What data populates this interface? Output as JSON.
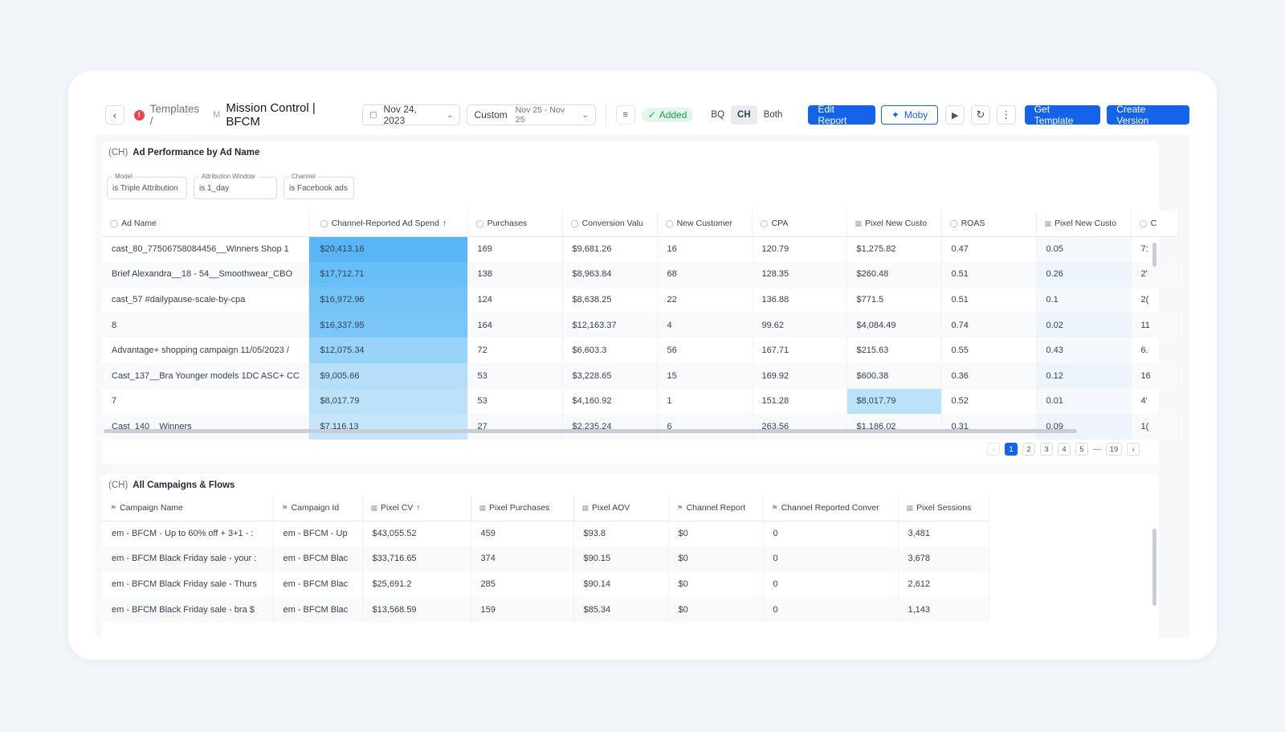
{
  "toolbar": {
    "breadcrumb": "Templates /",
    "badge": "M",
    "title": "Mission Control | BFCM",
    "date": "Nov 24, 2023",
    "range_label": "Custom",
    "range_value": "Nov 25 - Nov 25",
    "added": "Added",
    "seg": [
      "BQ",
      "CH",
      "Both"
    ],
    "edit_report": "Edit Report",
    "moby": "Moby",
    "get_template": "Get Template",
    "create_version": "Create Version"
  },
  "panel1": {
    "prefix": "(CH)",
    "title": "Ad Performance by Ad Name",
    "filters": [
      {
        "label": "Model",
        "value": "is Triple Attribution"
      },
      {
        "label": "Attribution Window",
        "value": "is 1_day"
      },
      {
        "label": "Channel",
        "value": "is Facebook ads"
      }
    ],
    "columns": [
      "Ad Name",
      "Channel-Reported Ad Spend",
      "Purchases",
      "Conversion Valu",
      "New Customer",
      "CPA",
      "Pixel New Custo",
      "ROAS",
      "Pixel New Custo",
      "C"
    ],
    "rows": [
      [
        "cast_80_77506758084456__Winners Shop 1",
        "$20,413.16",
        "169",
        "$9,681.26",
        "16",
        "120.79",
        "$1,275.82",
        "0.47",
        "0.05",
        "7:"
      ],
      [
        "Brief Alexandra__18 - 54__Smoothwear_CBO",
        "$17,712.71",
        "138",
        "$8,963.84",
        "68",
        "128.35",
        "$260.48",
        "0.51",
        "0.26",
        "2'"
      ],
      [
        "cast_57 #dailypause-scale-by-cpa",
        "$16,972.96",
        "124",
        "$8,638.25",
        "22",
        "136.88",
        "$771.5",
        "0.51",
        "0.1",
        "2("
      ],
      [
        "8",
        "$16,337.95",
        "164",
        "$12,163.37",
        "4",
        "99.62",
        "$4,084.49",
        "0.74",
        "0.02",
        "11"
      ],
      [
        "Advantage+ shopping campaign 11/05/2023 /",
        "$12,075.34",
        "72",
        "$6,603.3",
        "56",
        "167.71",
        "$215.63",
        "0.55",
        "0.43",
        "6."
      ],
      [
        "Cast_137__Bra Younger models 1DC ASC+ CC",
        "$9,005.66",
        "53",
        "$3,228.65",
        "15",
        "169.92",
        "$600.38",
        "0.36",
        "0.12",
        "16"
      ],
      [
        "7",
        "$8,017.79",
        "53",
        "$4,160.92",
        "1",
        "151.28",
        "$8,017.79",
        "0.52",
        "0.01",
        "4'"
      ],
      [
        "Cast_140__Winners",
        "$7,116.13",
        "27",
        "$2,235.24",
        "6",
        "263.56",
        "$1,186.02",
        "0.31",
        "0.09",
        "1("
      ]
    ],
    "spend_shades": [
      "#58b6f5",
      "#68bef6",
      "#74c3f7",
      "#7ac6f8",
      "#98d3f9",
      "#b4def9",
      "#bce2fa",
      "#c4e5fa"
    ],
    "pixel_highlight_row": 6,
    "pixel_highlight_color": "#bce2fa",
    "pages": [
      "1",
      "2",
      "3",
      "4",
      "5",
      "—",
      "19"
    ],
    "active_page": "1"
  },
  "panel2": {
    "prefix": "(CH)",
    "title": "All Campaigns & Flows",
    "columns": [
      "Campaign Name",
      "Campaign Id",
      "Pixel CV",
      "Pixel Purchases",
      "Pixel AOV",
      "Channel Report",
      "Channel Reported Conver",
      "Pixel Sessions"
    ],
    "rows": [
      [
        "em - BFCM - Up to 60% off + 3+1 - :",
        "em - BFCM - Up",
        "$43,055.52",
        "459",
        "$93.8",
        "$0",
        "0",
        "3,481"
      ],
      [
        "em - BFCM Black Friday sale - your :",
        "em - BFCM Blac",
        "$33,716.65",
        "374",
        "$90.15",
        "$0",
        "0",
        "3,678"
      ],
      [
        "em - BFCM Black Friday sale - Thurs",
        "em - BFCM Blac",
        "$25,691.2",
        "285",
        "$90.14",
        "$0",
        "0",
        "2,612"
      ],
      [
        "em - BFCM Black Friday sale - bra $",
        "em - BFCM Blac",
        "$13,568.59",
        "159",
        "$85.34",
        "$0",
        "0",
        "1,143"
      ]
    ]
  }
}
